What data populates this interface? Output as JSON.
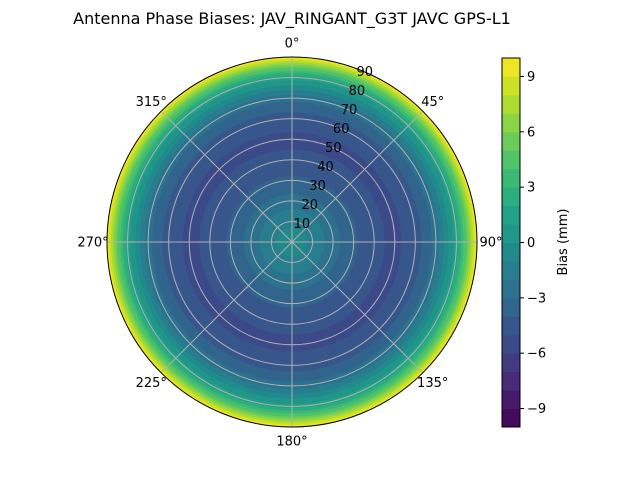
{
  "chart_data": {
    "type": "polar-contour",
    "title": "Antenna Phase Biases: JAV_RINGANT_G3T JAVC GPS-L1",
    "angle_tick_labels": [
      "0°",
      "45°",
      "90°",
      "135°",
      "180°",
      "225°",
      "270°",
      "315°"
    ],
    "radial_tick_labels": [
      "10",
      "20",
      "30",
      "40",
      "50",
      "60",
      "70",
      "80",
      "90"
    ],
    "radial_ticks": [
      10,
      20,
      30,
      40,
      50,
      60,
      70,
      80,
      90
    ],
    "rlim": [
      0,
      90
    ],
    "theta_direction": "clockwise",
    "theta_zero": "top",
    "grid": true,
    "colormap": "viridis",
    "colorbar": {
      "label": "Bias (mm)",
      "range": [
        -10,
        10
      ],
      "level_step": 1,
      "ticks": [
        -9,
        -6,
        -3,
        0,
        3,
        6,
        9
      ],
      "tick_labels": [
        "−9",
        "−6",
        "−3",
        "0",
        "3",
        "6",
        "9"
      ]
    },
    "profile_zenith": [
      0,
      10,
      20,
      30,
      40,
      50,
      60,
      70,
      80,
      85,
      90
    ],
    "profile_bias": [
      -0.5,
      -1.2,
      -2.6,
      -3.8,
      -4.8,
      -5.2,
      -4.6,
      -2.6,
      1.5,
      5,
      10
    ]
  }
}
